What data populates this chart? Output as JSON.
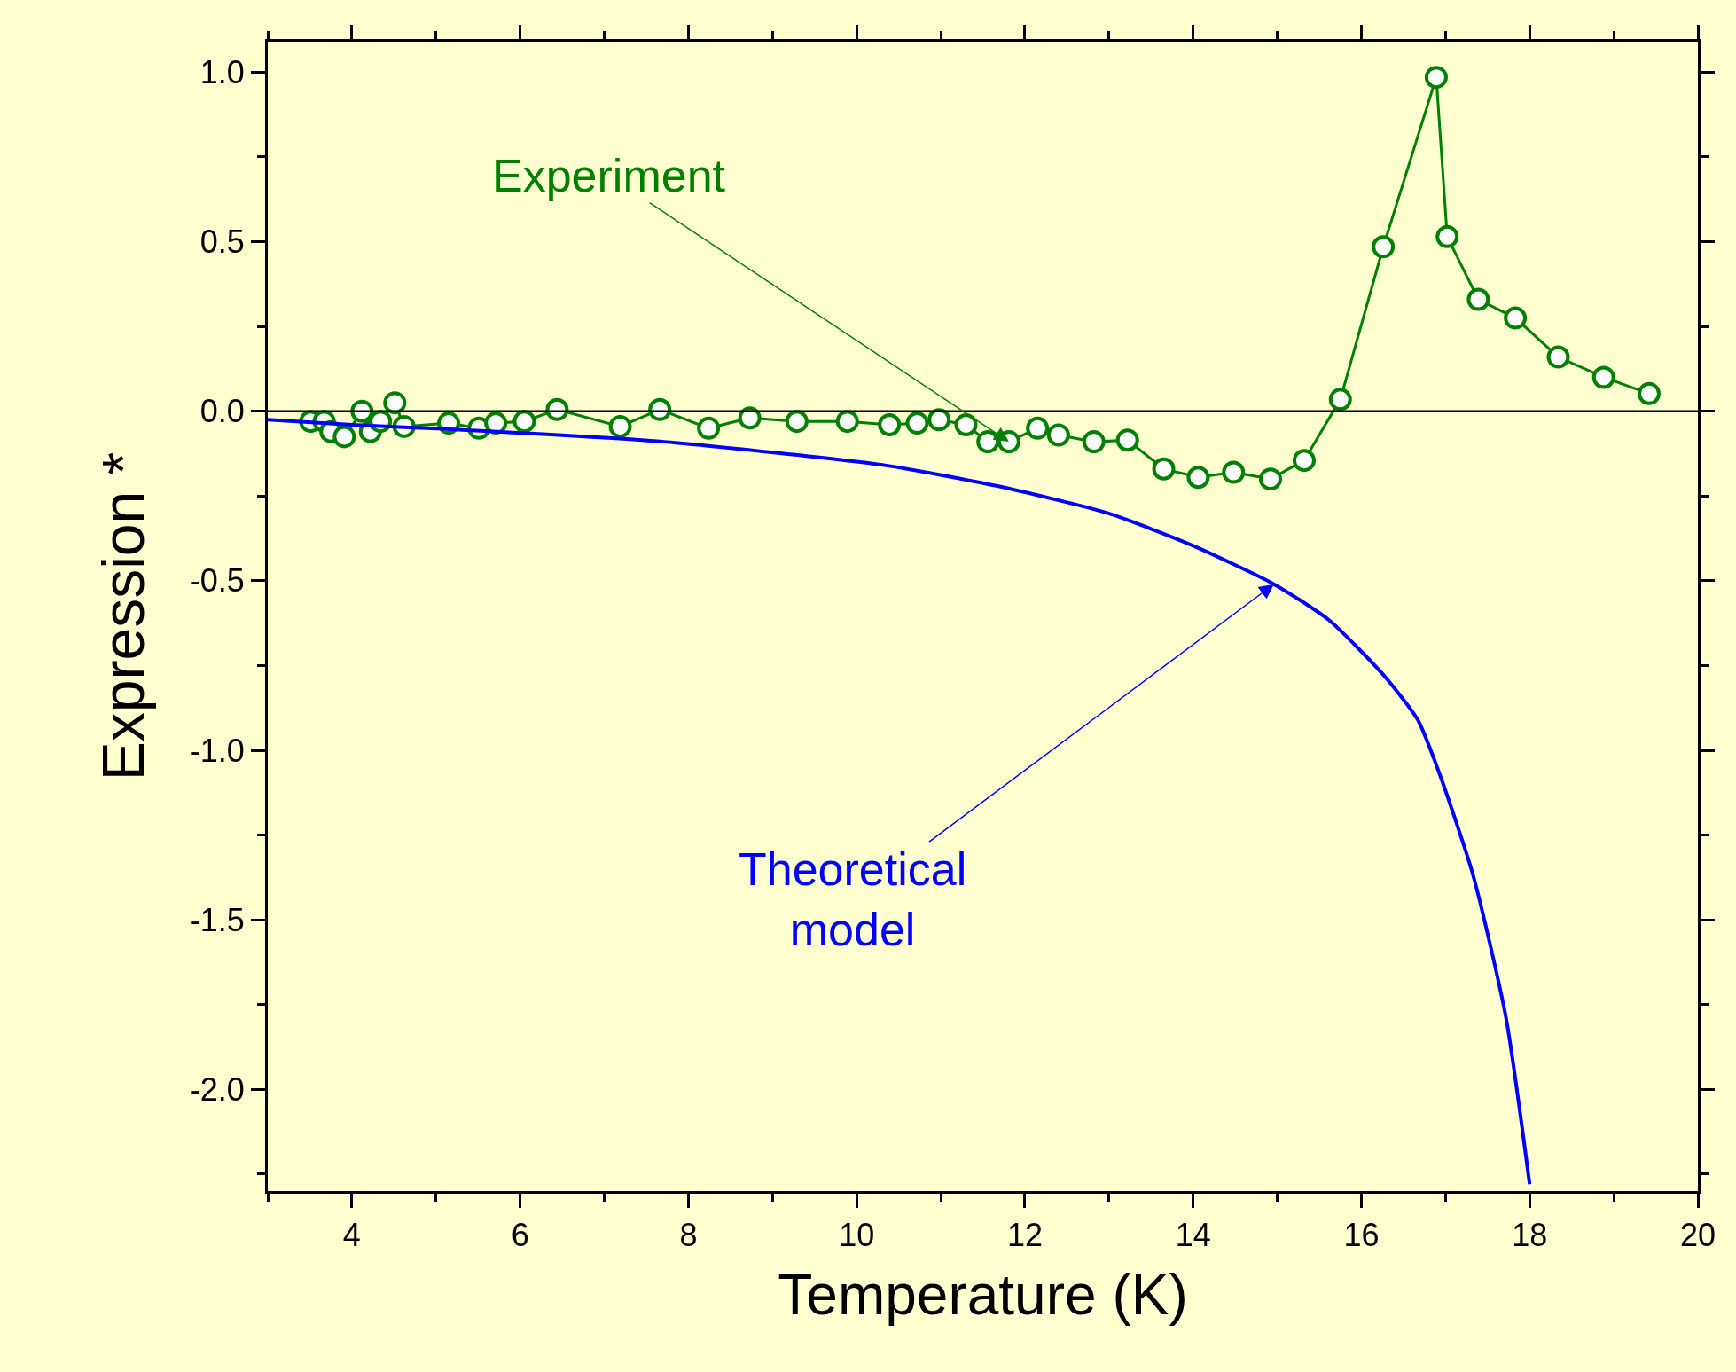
{
  "chart_data": {
    "type": "line",
    "xlabel": "Temperature (K)",
    "ylabel": "Expression *",
    "xlim": [
      3,
      20
    ],
    "ylim": [
      -2.3,
      1.09
    ],
    "xticks": [
      4,
      6,
      8,
      10,
      12,
      14,
      16,
      18,
      20
    ],
    "yticks": [
      {
        "value": -2,
        "label": "-2.0"
      },
      {
        "value": -1.5,
        "label": "-1.5"
      },
      {
        "value": -1,
        "label": "-1.0"
      },
      {
        "value": -0.5,
        "label": "-0.5"
      },
      {
        "value": 0,
        "label": "0.0"
      },
      {
        "value": 0.5,
        "label": "0.5"
      },
      {
        "value": 1,
        "label": "1.0"
      }
    ],
    "grid": false,
    "series": [
      {
        "color": "#008000",
        "marker": "circle",
        "line_style": "solid",
        "x": [
          3.51,
          3.67,
          3.75,
          3.91,
          4.12,
          4.22,
          4.34,
          4.51,
          4.62,
          5.15,
          5.51,
          5.71,
          6.05,
          6.44,
          7.19,
          7.66,
          8.24,
          8.73,
          9.29,
          9.89,
          10.39,
          10.72,
          10.98,
          11.3,
          11.56,
          11.81,
          12.15,
          12.4,
          12.82,
          13.22,
          13.65,
          14.06,
          14.48,
          14.92,
          15.32,
          15.75,
          16.26,
          16.89,
          17.02,
          17.39,
          17.83,
          18.34,
          18.88,
          19.42
        ],
        "values": [
          -0.03,
          -0.03,
          -0.06,
          -0.075,
          0.0,
          -0.06,
          -0.03,
          0.025,
          -0.045,
          -0.035,
          -0.05,
          -0.035,
          -0.03,
          0.005,
          -0.045,
          0.005,
          -0.05,
          -0.02,
          -0.03,
          -0.03,
          -0.04,
          -0.035,
          -0.025,
          -0.04,
          -0.09,
          -0.09,
          -0.05,
          -0.07,
          -0.09,
          -0.085,
          -0.17,
          -0.195,
          -0.18,
          -0.2,
          -0.145,
          0.035,
          0.485,
          0.985,
          0.515,
          0.33,
          0.275,
          0.16,
          0.1,
          0.052
        ]
      },
      {
        "color": "#0000ff",
        "marker": "none",
        "line_style": "solid",
        "x": [
          3,
          4,
          5.08,
          7.71,
          10.35,
          11.66,
          12.98,
          14.03,
          14.96,
          15.61,
          16.27,
          16.67,
          16.93,
          17.33,
          17.72,
          18.0
        ],
        "values": [
          -0.025,
          -0.04,
          -0.052,
          -0.09,
          -0.16,
          -0.22,
          -0.3,
          -0.4,
          -0.51,
          -0.615,
          -0.78,
          -0.91,
          -1.07,
          -1.37,
          -1.79,
          -2.28
        ]
      }
    ],
    "ref_lines": [
      {
        "axis": "y",
        "value": 0,
        "color": "#000000"
      }
    ],
    "annotations": [
      {
        "text": "Experiment",
        "x": 11.81,
        "y": -0.09
      },
      {
        "text": "Theoretical\nmodel",
        "x": 14.96,
        "y": -0.51
      }
    ]
  }
}
